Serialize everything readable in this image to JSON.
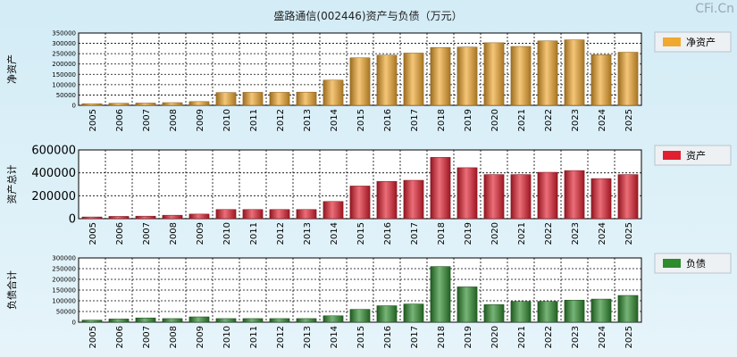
{
  "header": {
    "title": "盛路通信(002446)资产与负债（万元）",
    "brand": "CFi.Cn"
  },
  "chart_data": [
    {
      "type": "bar",
      "name": "net-assets",
      "ylabel": "净资产",
      "legend": "净资产",
      "color": "#f0a830",
      "categories": [
        "2005",
        "2006",
        "2007",
        "2008",
        "2009",
        "2010",
        "2011",
        "2012",
        "2013",
        "2014",
        "2015",
        "2016",
        "2017",
        "2018",
        "2019",
        "2020",
        "2021",
        "2022",
        "2023",
        "2024",
        "2025"
      ],
      "values": [
        8000,
        10000,
        11000,
        13000,
        18000,
        62000,
        63000,
        63000,
        64000,
        122000,
        230000,
        243000,
        253000,
        280000,
        282000,
        303000,
        285000,
        312000,
        317000,
        245000,
        257000
      ],
      "ylim": [
        0,
        350000
      ],
      "yticks": [
        0,
        50000,
        100000,
        150000,
        200000,
        250000,
        300000,
        350000
      ],
      "ytick_labels": [
        "0",
        "50000",
        "100000",
        "150000",
        "200000",
        "250000",
        "300000",
        "350000"
      ]
    },
    {
      "type": "bar",
      "name": "total-assets",
      "ylabel": "资产总计",
      "legend": "资产",
      "color": "#e02030",
      "categories": [
        "2005",
        "2006",
        "2007",
        "2008",
        "2009",
        "2010",
        "2011",
        "2012",
        "2013",
        "2014",
        "2015",
        "2016",
        "2017",
        "2018",
        "2019",
        "2020",
        "2021",
        "2022",
        "2023",
        "2024",
        "2025"
      ],
      "values": [
        15000,
        20000,
        22000,
        30000,
        40000,
        80000,
        80000,
        80000,
        80000,
        150000,
        285000,
        325000,
        335000,
        535000,
        445000,
        385000,
        385000,
        405000,
        420000,
        350000,
        385000
      ],
      "ylim": [
        0,
        600000
      ],
      "yticks": [
        0,
        200000,
        400000,
        600000
      ],
      "ytick_labels": [
        "0",
        "200000",
        "400000",
        "600000"
      ]
    },
    {
      "type": "bar",
      "name": "total-liabilities",
      "ylabel": "负债合计",
      "legend": "负债",
      "color": "#2e8b2e",
      "categories": [
        "2005",
        "2006",
        "2007",
        "2008",
        "2009",
        "2010",
        "2011",
        "2012",
        "2013",
        "2014",
        "2015",
        "2016",
        "2017",
        "2018",
        "2019",
        "2020",
        "2021",
        "2022",
        "2023",
        "2024",
        "2025"
      ],
      "values": [
        10000,
        15000,
        20000,
        17000,
        25000,
        17000,
        17000,
        17000,
        17000,
        30000,
        60000,
        77000,
        85000,
        260000,
        165000,
        82000,
        97000,
        97000,
        103000,
        108000,
        125000
      ],
      "ylim": [
        0,
        300000
      ],
      "yticks": [
        0,
        50000,
        100000,
        150000,
        200000,
        250000,
        300000
      ],
      "ytick_labels": [
        "0",
        "50000",
        "100000",
        "150000",
        "200000",
        "250000",
        "300000"
      ]
    }
  ]
}
